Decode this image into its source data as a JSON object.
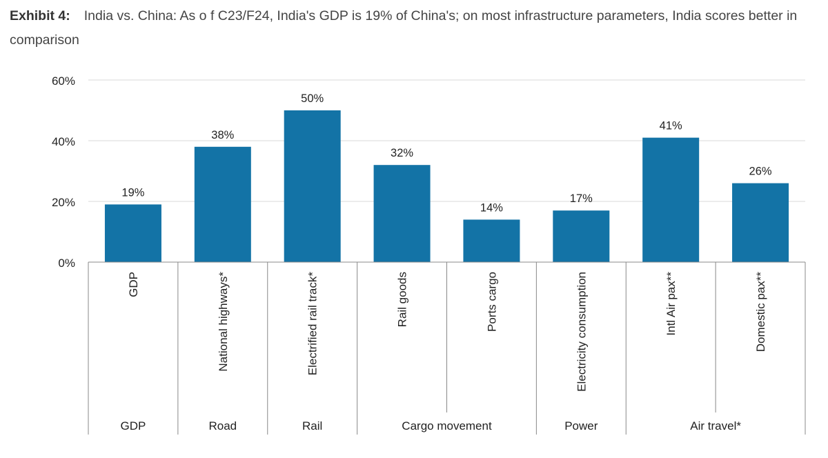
{
  "title": {
    "label": "Exhibit 4:",
    "text": "India vs. China: As o f C23/F24, India's GDP is 19% of China's; on most infrastructure parameters, India scores better in comparison"
  },
  "chart_data": {
    "type": "bar",
    "title": "India vs. China: As o f C23/F24, India's GDP is 19% of China's; on most infrastructure parameters, India scores better in comparison",
    "xlabel": "",
    "ylabel": "",
    "ylim": [
      0,
      60
    ],
    "yticks": [
      0,
      20,
      40,
      60
    ],
    "ytick_labels": [
      "0%",
      "20%",
      "40%",
      "60%"
    ],
    "grid": true,
    "bar_color": "#1373a6",
    "categories": [
      "GDP",
      "National highways*",
      "Electrified rail track*",
      "Rail goods",
      "Ports cargo",
      "Electricity consumption",
      "Intl Air pax**",
      "Domestic pax**"
    ],
    "values": [
      19,
      38,
      50,
      32,
      14,
      17,
      41,
      26
    ],
    "data_labels": [
      "19%",
      "38%",
      "50%",
      "32%",
      "14%",
      "17%",
      "41%",
      "26%"
    ],
    "groups": [
      {
        "name": "GDP",
        "span": 1
      },
      {
        "name": "Road",
        "span": 1
      },
      {
        "name": "Rail",
        "span": 1
      },
      {
        "name": "Cargo movement",
        "span": 2
      },
      {
        "name": "Power",
        "span": 1
      },
      {
        "name": "Air travel*",
        "span": 2
      }
    ]
  }
}
